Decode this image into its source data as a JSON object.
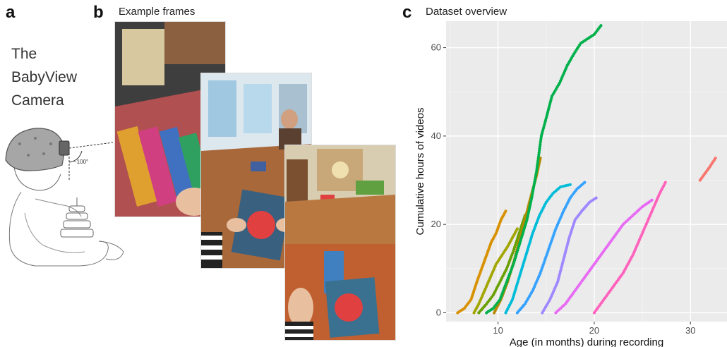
{
  "panel_a": {
    "letter": "a",
    "caption_lines": [
      "The",
      "BabyView",
      "Camera"
    ],
    "angle_label": "~100°"
  },
  "panel_b": {
    "letter": "b",
    "title": "Example frames"
  },
  "panel_c": {
    "letter": "c",
    "title": "Dataset overview"
  },
  "chart_data": {
    "type": "scatter",
    "title": "",
    "xlabel": "Age (in months) during recording",
    "ylabel": "Cumulative hours of videos",
    "xlim": [
      4.6,
      33.8
    ],
    "ylim": [
      -2,
      66
    ],
    "xticks": [
      10,
      20,
      30
    ],
    "yticks": [
      0,
      20,
      40,
      60
    ],
    "grid": true,
    "background": "#ebebeb",
    "series": [
      {
        "color": "#d89000",
        "points": [
          [
            5.8,
            0
          ],
          [
            6.5,
            1
          ],
          [
            7.2,
            3
          ],
          [
            7.8,
            7
          ],
          [
            8.3,
            10
          ],
          [
            8.8,
            13
          ],
          [
            9.3,
            16
          ],
          [
            9.8,
            18
          ],
          [
            10.3,
            21
          ],
          [
            10.8,
            23
          ]
        ]
      },
      {
        "color": "#a3a500",
        "points": [
          [
            7.5,
            0
          ],
          [
            8.0,
            2
          ],
          [
            8.6,
            5
          ],
          [
            9.2,
            8
          ],
          [
            9.8,
            11
          ],
          [
            10.4,
            13
          ],
          [
            11.0,
            15
          ],
          [
            11.5,
            17
          ],
          [
            12.0,
            19
          ]
        ]
      },
      {
        "color": "#6aa000",
        "points": [
          [
            8.0,
            0
          ],
          [
            8.8,
            2
          ],
          [
            9.5,
            4
          ],
          [
            10.2,
            7
          ],
          [
            10.9,
            10
          ],
          [
            11.6,
            14
          ],
          [
            12.2,
            18
          ],
          [
            12.8,
            22
          ]
        ]
      },
      {
        "color": "#b58a00",
        "points": [
          [
            9.6,
            0
          ],
          [
            10.3,
            3
          ],
          [
            11.0,
            7
          ],
          [
            11.7,
            12
          ],
          [
            12.3,
            17
          ],
          [
            12.9,
            22
          ],
          [
            13.5,
            27
          ],
          [
            14.0,
            31
          ],
          [
            14.4,
            35
          ]
        ]
      },
      {
        "color": "#00b04a",
        "points": [
          [
            8.8,
            0
          ],
          [
            9.5,
            1
          ],
          [
            10.2,
            3
          ],
          [
            10.9,
            7
          ],
          [
            11.6,
            11
          ],
          [
            12.3,
            16
          ],
          [
            13.0,
            21
          ],
          [
            13.5,
            26
          ],
          [
            14.0,
            32
          ],
          [
            14.5,
            40
          ],
          [
            15.0,
            44
          ],
          [
            15.6,
            49
          ],
          [
            16.4,
            52
          ],
          [
            17.2,
            56
          ],
          [
            18.0,
            59
          ],
          [
            18.6,
            61
          ],
          [
            19.3,
            62
          ],
          [
            20.0,
            63
          ],
          [
            20.7,
            65
          ]
        ]
      },
      {
        "color": "#00bcd8",
        "points": [
          [
            10.8,
            0
          ],
          [
            11.5,
            3
          ],
          [
            12.2,
            8
          ],
          [
            12.9,
            13
          ],
          [
            13.6,
            18
          ],
          [
            14.3,
            22
          ],
          [
            15.0,
            25
          ],
          [
            15.7,
            27
          ],
          [
            16.5,
            28.5
          ],
          [
            17.5,
            29
          ]
        ]
      },
      {
        "color": "#35a2ff",
        "points": [
          [
            12.0,
            0
          ],
          [
            12.8,
            2
          ],
          [
            13.6,
            5
          ],
          [
            14.4,
            9
          ],
          [
            15.2,
            14
          ],
          [
            16.0,
            19
          ],
          [
            16.8,
            23
          ],
          [
            17.5,
            26
          ],
          [
            18.2,
            28
          ],
          [
            19.0,
            29.5
          ]
        ]
      },
      {
        "color": "#9e87ff",
        "points": [
          [
            14.6,
            0
          ],
          [
            15.4,
            3
          ],
          [
            16.2,
            7
          ],
          [
            16.8,
            12
          ],
          [
            17.4,
            17
          ],
          [
            18.0,
            21
          ],
          [
            18.7,
            23
          ],
          [
            19.5,
            25
          ],
          [
            20.2,
            26
          ]
        ]
      },
      {
        "color": "#e76bf3",
        "points": [
          [
            16.0,
            0
          ],
          [
            17.0,
            2
          ],
          [
            18.0,
            5
          ],
          [
            19.0,
            8
          ],
          [
            20.0,
            11
          ],
          [
            21.0,
            14
          ],
          [
            22.0,
            17
          ],
          [
            23.0,
            20
          ],
          [
            24.0,
            22
          ],
          [
            25.0,
            24
          ],
          [
            26.0,
            25.5
          ]
        ]
      },
      {
        "color": "#ff62bc",
        "points": [
          [
            20.0,
            0
          ],
          [
            21.0,
            3
          ],
          [
            22.0,
            6
          ],
          [
            23.0,
            9
          ],
          [
            24.0,
            13
          ],
          [
            24.8,
            17
          ],
          [
            25.6,
            21
          ],
          [
            26.2,
            24
          ],
          [
            26.8,
            27
          ],
          [
            27.4,
            29.5
          ]
        ]
      },
      {
        "color": "#f8766d",
        "points": [
          [
            31.0,
            30
          ],
          [
            31.5,
            31.5
          ],
          [
            32.0,
            33
          ],
          [
            32.6,
            35
          ]
        ]
      }
    ]
  }
}
